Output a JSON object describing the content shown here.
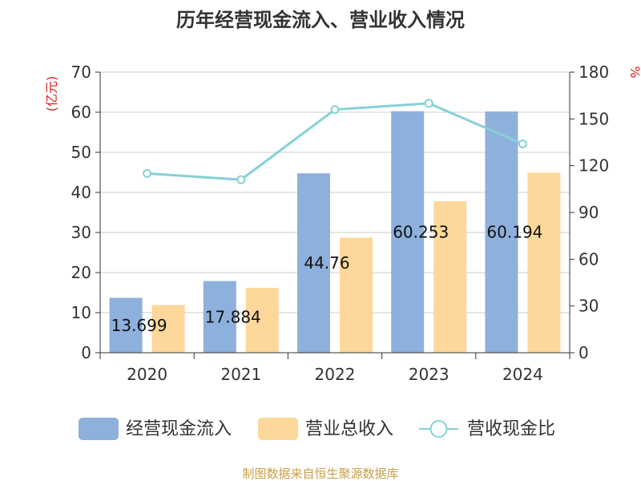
{
  "chart_data": {
    "type": "bar",
    "title": "历年经营现金流入、营业收入情况",
    "categories": [
      "2020",
      "2021",
      "2022",
      "2023",
      "2024"
    ],
    "left_axis": {
      "label": "(亿元)",
      "ticks": [
        0,
        10,
        20,
        30,
        40,
        50,
        60,
        70
      ],
      "ylim": [
        0,
        70
      ]
    },
    "right_axis": {
      "label": "%",
      "ticks": [
        0,
        30,
        60,
        90,
        120,
        150,
        180
      ],
      "ylim": [
        0,
        180
      ]
    },
    "series": [
      {
        "name": "经营现金流入",
        "type": "bar",
        "axis": "left",
        "color": "#8eb0dc",
        "values": [
          13.699,
          17.884,
          44.76,
          60.253,
          60.194
        ],
        "data_labels": [
          "13.699",
          "17.884",
          "44.76",
          "60.253",
          "60.194"
        ]
      },
      {
        "name": "营业总收入",
        "type": "bar",
        "axis": "left",
        "color": "#fdd89a",
        "values": [
          11.9,
          16.2,
          28.7,
          37.8,
          44.9
        ]
      },
      {
        "name": "营收现金比",
        "type": "line",
        "axis": "right",
        "color": "#86d1d6",
        "values": [
          115,
          111,
          156,
          160,
          134
        ]
      }
    ],
    "legend_position": "bottom",
    "grid": true
  },
  "footer": {
    "source": "制图数据来自恒生聚源数据库"
  }
}
